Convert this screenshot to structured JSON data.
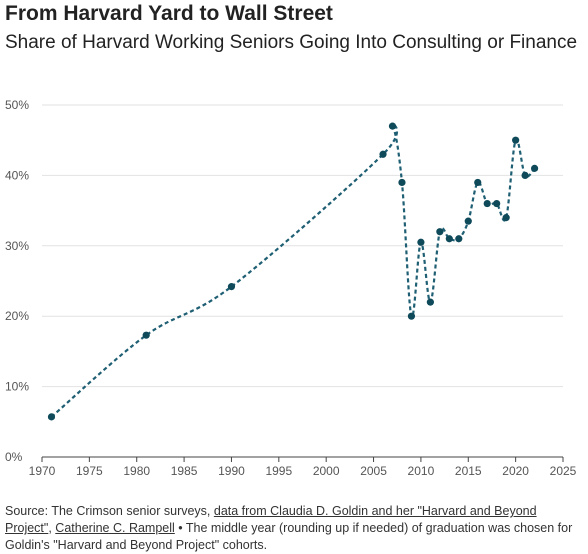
{
  "header": {
    "title": "From Harvard Yard to Wall Street",
    "subtitle": "Share of Harvard Working Seniors Going Into Consulting or Finance"
  },
  "source": {
    "prefix": "Source: The Crimson senior surveys, ",
    "link1": "data from Claudia D. Goldin and her \"Harvard and Beyond Project\"",
    "sep": ", ",
    "link2": "Catherine C. Rampell",
    "suffix": " • The middle year (rounding up if needed) of graduation was chosen for Goldin's \"Harvard and Beyond Project\" cohorts."
  },
  "chart_data": {
    "type": "line",
    "title": "From Harvard Yard to Wall Street",
    "subtitle": "Share of Harvard Working Seniors Going Into Consulting or Finance",
    "xlabel": "",
    "ylabel": "",
    "xlim": [
      1970,
      2025
    ],
    "ylim": [
      0,
      50
    ],
    "xticks": [
      1970,
      1975,
      1980,
      1985,
      1990,
      1995,
      2000,
      2005,
      2010,
      2015,
      2020,
      2025
    ],
    "yticks": [
      0,
      10,
      20,
      30,
      40,
      50
    ],
    "ytick_labels": [
      "0%",
      "10%",
      "20%",
      "30%",
      "40%",
      "50%"
    ],
    "grid": "horizontal",
    "line_style": "dashed",
    "color": "#1f5f73",
    "marker_color": "#0f4a5a",
    "series": [
      {
        "x": [
          1971,
          1981,
          1990,
          2006,
          2007,
          2008,
          2009,
          2010,
          2011,
          2012,
          2013,
          2014,
          2015,
          2016,
          2017,
          2018,
          2019,
          2020,
          2021,
          2022
        ],
        "y": [
          5.7,
          17.3,
          24.2,
          43.0,
          47.0,
          39.0,
          20.0,
          30.5,
          22.0,
          32.0,
          31.0,
          31.0,
          33.5,
          39.0,
          36.0,
          36.0,
          34.0,
          45.0,
          40.0,
          41.0
        ]
      }
    ]
  }
}
